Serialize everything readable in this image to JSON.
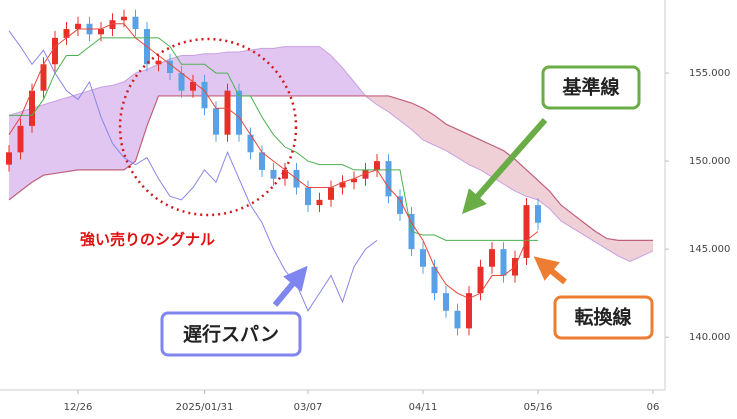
{
  "chart_data": {
    "type": "candlestick",
    "annotation": "強い売りのシグナル",
    "categories": [
      null,
      null,
      null,
      null,
      null,
      null,
      "12/26",
      null,
      null,
      null,
      null,
      null,
      null,
      null,
      null,
      null,
      null,
      "2025/01/31",
      null,
      null,
      null,
      null,
      null,
      null,
      null,
      null,
      "03/07",
      null,
      null,
      null,
      null,
      null,
      null,
      null,
      null,
      null,
      "04/11",
      null,
      null,
      null,
      null,
      null,
      null,
      null,
      null,
      null,
      "05/16",
      null,
      null,
      null,
      null,
      null,
      null,
      null,
      null,
      null,
      "06",
      null
    ],
    "open": [
      149.8,
      150.5,
      152,
      154,
      155.5,
      157,
      157.5,
      157.8,
      157.2,
      157.5,
      158,
      158.2,
      157.5,
      155.5,
      155.7,
      155,
      154,
      154.5,
      153,
      151.5,
      154,
      151.5,
      150.5,
      149.5,
      149,
      149.5,
      148.5,
      147.5,
      147.8,
      148.5,
      148.8,
      149,
      149.5,
      150,
      148,
      147,
      145,
      144,
      142.5,
      141.5,
      140.5,
      142.5,
      144,
      145,
      143.5,
      144.5,
      147.5,
      null,
      null,
      null,
      null,
      null,
      null,
      null,
      null,
      null,
      null,
      null
    ],
    "high": [
      150.9,
      152.4,
      154.4,
      155.9,
      157.4,
      157.9,
      158.2,
      158.2,
      157.9,
      158.4,
      158.6,
      158.6,
      157.9,
      156.1,
      156.1,
      155.4,
      154.9,
      154.9,
      153.4,
      154.4,
      154.4,
      151.9,
      150.9,
      149.9,
      149.9,
      149.9,
      148.9,
      148.2,
      148.9,
      149.2,
      149.4,
      149.9,
      150.4,
      150.4,
      148.4,
      147.4,
      145.4,
      144.4,
      142.9,
      141.9,
      142.9,
      144.4,
      145.4,
      145.4,
      144.9,
      147.9,
      147.9,
      null,
      null,
      null,
      null,
      null,
      null,
      null,
      null,
      null,
      null,
      null
    ],
    "low": [
      149.4,
      150.1,
      151.6,
      153.6,
      155.1,
      156.6,
      157.1,
      156.8,
      156.8,
      157.1,
      157.6,
      157.1,
      155.1,
      155.1,
      154.6,
      153.6,
      153.6,
      152.6,
      151.1,
      151.1,
      151.1,
      150.1,
      149.1,
      148.6,
      148.6,
      148.1,
      147.1,
      147.1,
      147.4,
      148.1,
      148.4,
      148.6,
      149.1,
      147.6,
      146.6,
      144.6,
      143.6,
      142.1,
      141.1,
      140.1,
      140.1,
      142.1,
      143.6,
      143.1,
      143.1,
      144.1,
      146.1,
      null,
      null,
      null,
      null,
      null,
      null,
      null,
      null,
      null,
      null,
      null
    ],
    "close": [
      150.5,
      152,
      154,
      155.5,
      157,
      157.5,
      157.8,
      157.2,
      157.5,
      158,
      158.2,
      157.5,
      155.5,
      155.7,
      155,
      154,
      154.5,
      153,
      151.5,
      154,
      151.5,
      150.5,
      149.5,
      149,
      149.5,
      148.5,
      147.5,
      147.8,
      148.5,
      148.8,
      149,
      149.5,
      150,
      148,
      147,
      145,
      144,
      142.5,
      141.5,
      140.5,
      142.5,
      144,
      145,
      143.5,
      144.5,
      147.5,
      146.5,
      null,
      null,
      null,
      null,
      null,
      null,
      null,
      null,
      null,
      null,
      null
    ],
    "up_color": "#e8302a",
    "down_color": "#5aa0e6",
    "cloud_up_color": "#dcbcf0",
    "cloud_down_color": "#ecc8d0",
    "series": [
      {
        "name": "基準線",
        "color": "#4caf50",
        "values": [
          152.6,
          152.6,
          152.6,
          153.5,
          155,
          156,
          156,
          156.5,
          157,
          157,
          157,
          157,
          157,
          157,
          156.5,
          155.5,
          155.5,
          155.5,
          155,
          155,
          153.7,
          153.7,
          152.5,
          151.5,
          150.8,
          150.5,
          150,
          149.8,
          149.8,
          149.8,
          149.5,
          149.5,
          149.5,
          149.5,
          149.5,
          146,
          145.8,
          145.8,
          145.5,
          145.5,
          145.5,
          145.5,
          145.5,
          145.5,
          145.5,
          145.5,
          145.5,
          null,
          null,
          null,
          null,
          null,
          null,
          null,
          null,
          null,
          null,
          null
        ]
      },
      {
        "name": "転換線",
        "color": "#e8473a",
        "values": [
          151.5,
          152.5,
          154,
          155.5,
          156.5,
          157,
          157.5,
          157.5,
          157.5,
          157.8,
          157.8,
          157,
          156.5,
          156,
          155.5,
          155,
          154.5,
          154,
          153,
          153,
          152.5,
          151.5,
          150.5,
          150,
          149.5,
          149,
          148.5,
          148.5,
          148.5,
          148.8,
          149,
          149.3,
          149.5,
          148.5,
          147.8,
          146.5,
          145.5,
          144,
          143,
          142.5,
          142.2,
          142.5,
          143.5,
          143.5,
          144,
          145.5,
          146,
          null,
          null,
          null,
          null,
          null,
          null,
          null,
          null,
          null,
          null,
          null
        ]
      },
      {
        "name": "遅行スパン",
        "color": "#8a86e8",
        "values": [
          157.4,
          156.5,
          155.5,
          156.3,
          155,
          154,
          153.5,
          154.5,
          152.5,
          151,
          150.2,
          149.8,
          150.2,
          149,
          148,
          147.8,
          148.5,
          149.5,
          148.8,
          150.5,
          149,
          147.5,
          146.5,
          145,
          143.8,
          143,
          141.5,
          142.5,
          143.5,
          142,
          144,
          145,
          145.5,
          null,
          null,
          null,
          null,
          null,
          null,
          null,
          null,
          null,
          null,
          null,
          null,
          null,
          null,
          null,
          null,
          null,
          null,
          null,
          null,
          null,
          null,
          null,
          null,
          null
        ]
      },
      {
        "color": "#c9a0e0",
        "values": [
          152.6,
          152.8,
          153,
          153.2,
          153.4,
          153.6,
          153.8,
          154,
          154.2,
          154.3,
          154.5,
          155,
          155.2,
          155.5,
          155.8,
          156,
          156,
          156.1,
          156.1,
          156.2,
          156.2,
          156.3,
          156.4,
          156.4,
          156.5,
          156.5,
          156.5,
          156.5,
          156,
          155.3,
          154.5,
          153.7,
          153.2,
          152.8,
          152.3,
          151.8,
          151.2,
          150.9,
          150.6,
          150.2,
          149.8,
          149.5,
          149.1,
          148.7,
          148.3,
          148,
          147.8,
          147.3,
          146.6,
          146.2,
          145.8,
          145.4,
          145,
          144.6,
          144.3,
          144.6,
          144.9,
          null
        ]
      },
      {
        "color": "#c0607a",
        "values": [
          147.8,
          148.3,
          148.8,
          149.2,
          149.3,
          149.4,
          149.5,
          149.5,
          149.5,
          149.5,
          149.5,
          150,
          152,
          153.7,
          153.7,
          153.7,
          153.7,
          153.7,
          153.7,
          153.7,
          153.7,
          153.7,
          153.7,
          153.7,
          153.7,
          153.7,
          153.7,
          153.7,
          153.7,
          153.7,
          153.7,
          153.7,
          153.7,
          153.7,
          153.5,
          153.3,
          153,
          152.6,
          152.1,
          151.8,
          151.5,
          151.2,
          150.9,
          150.6,
          150.1,
          149.5,
          148.9,
          148.3,
          147.5,
          147,
          146.5,
          146,
          145.6,
          145.5,
          145.5,
          145.5,
          145.5,
          null
        ]
      }
    ],
    "ylim": [
      137,
      159.15
    ],
    "yticks": [
      {
        "value": 140,
        "label": "140.000"
      },
      {
        "value": 145,
        "label": "145.000"
      },
      {
        "value": 150,
        "label": "150.000"
      },
      {
        "value": 155,
        "label": "155.000"
      }
    ]
  }
}
